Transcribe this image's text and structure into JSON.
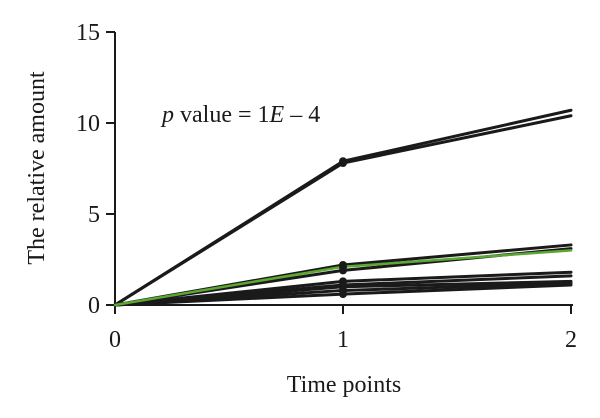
{
  "chart_data": {
    "type": "line",
    "title": "",
    "xlabel": "Time points",
    "ylabel": "The relative amount",
    "xlim": [
      0,
      2
    ],
    "ylim": [
      0,
      15
    ],
    "x_ticks": [
      "0",
      "1",
      "2"
    ],
    "y_ticks": [
      "0",
      "5",
      "10",
      "15"
    ],
    "grid": false,
    "annotation": {
      "p_symbol": "p",
      "text_mid": " value = 1",
      "e_symbol": "E",
      "text_end": " – 4"
    },
    "x": [
      0,
      1,
      2
    ],
    "series": [
      {
        "values": [
          0,
          7.9,
          10.7
        ],
        "color": "#1a1a1a"
      },
      {
        "values": [
          0,
          7.8,
          10.4
        ],
        "color": "#1a1a1a"
      },
      {
        "values": [
          0,
          2.2,
          3.3
        ],
        "color": "#1a1a1a"
      },
      {
        "values": [
          0,
          2.1,
          3.0
        ],
        "color": "#5aa832"
      },
      {
        "values": [
          0,
          1.9,
          3.1
        ],
        "color": "#1a1a1a"
      },
      {
        "values": [
          0,
          1.3,
          1.8
        ],
        "color": "#1a1a1a"
      },
      {
        "values": [
          0,
          1.1,
          1.6
        ],
        "color": "#1a1a1a"
      },
      {
        "values": [
          0,
          1.0,
          1.3
        ],
        "color": "#1a1a1a"
      },
      {
        "values": [
          0,
          0.8,
          1.2
        ],
        "color": "#1a1a1a"
      },
      {
        "values": [
          0,
          0.6,
          1.1
        ],
        "color": "#1a1a1a"
      }
    ]
  }
}
